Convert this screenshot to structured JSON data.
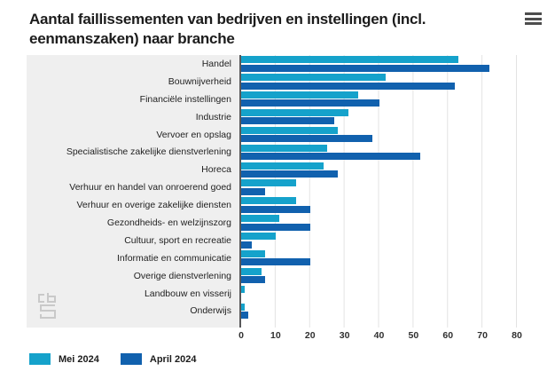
{
  "header": {
    "menu_icon": "hamburger-menu"
  },
  "chart_data": {
    "type": "bar",
    "orientation": "horizontal",
    "title": "Aantal faillissementen van bedrijven en instellingen (incl. eenmanszaken) naar branche",
    "categories": [
      "Handel",
      "Bouwnijverheid",
      "Financiële instellingen",
      "Industrie",
      "Vervoer en opslag",
      "Specialistische zakelijke dienstverlening",
      "Horeca",
      "Verhuur en handel van onroerend goed",
      "Verhuur en overige zakelijke diensten",
      "Gezondheids- en welzijnszorg",
      "Cultuur, sport en recreatie",
      "Informatie en communicatie",
      "Overige dienstverlening",
      "Landbouw en visserij",
      "Onderwijs"
    ],
    "series": [
      {
        "name": "Mei 2024",
        "color": "#15a2cb",
        "values": [
          63,
          42,
          34,
          31,
          28,
          25,
          24,
          16,
          16,
          11,
          10,
          7,
          6,
          1,
          1
        ]
      },
      {
        "name": "April 2024",
        "color": "#1161ae",
        "values": [
          72,
          62,
          40,
          27,
          38,
          52,
          28,
          7,
          20,
          20,
          3,
          20,
          7,
          0,
          2
        ]
      }
    ],
    "xlim": [
      0,
      80
    ],
    "x_ticks": [
      "0",
      "10",
      "20",
      "30",
      "40",
      "50",
      "60",
      "70",
      "80"
    ],
    "grid": true,
    "legend_position": "bottom",
    "watermark": "cbs-logo",
    "colors": {
      "panel_background": "#efefef",
      "gridline": "#e3e3e3",
      "axis_line": "#58585a"
    }
  }
}
